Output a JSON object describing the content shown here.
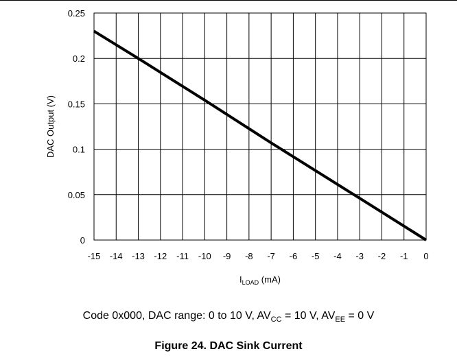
{
  "chart_data": {
    "type": "line",
    "title": "",
    "xlabel": {
      "main": "I",
      "sub": "LOAD",
      "suffix": " (mA)"
    },
    "ylabel": "DAC Output (V)",
    "xlim": [
      -15,
      0
    ],
    "ylim": [
      0,
      0.25
    ],
    "x_ticks": [
      "-15",
      "-14",
      "-13",
      "-12",
      "-11",
      "-10",
      "-9",
      "-8",
      "-7",
      "-6",
      "-5",
      "-4",
      "-3",
      "-2",
      "-1",
      "0"
    ],
    "y_ticks": [
      "0",
      "0.05",
      "0.1",
      "0.15",
      "0.2",
      "0.25"
    ],
    "grid": true,
    "series": [
      {
        "x": [
          -15,
          -13,
          -10,
          -7,
          -3,
          0
        ],
        "y": [
          0.23,
          0.2,
          0.154,
          0.107,
          0.046,
          0.0
        ]
      }
    ]
  },
  "caption": {
    "t1": "Code 0x000, DAC range: 0 to 10 V, AV",
    "sub1": "CC",
    "t2": " = 10 V, AV",
    "sub2": "EE",
    "t3": " = 0 V"
  },
  "figure_title": "Figure 24. DAC Sink Current"
}
